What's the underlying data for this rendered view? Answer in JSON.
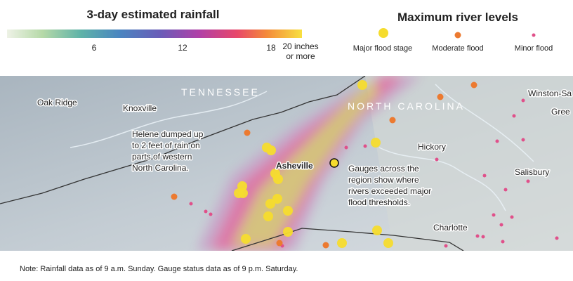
{
  "legend": {
    "rainfall": {
      "title": "3-day estimated rainfall",
      "ticks": [
        6,
        12,
        18
      ],
      "end_label": [
        "20 inches",
        "or more"
      ]
    },
    "river": {
      "title": "Maximum river levels",
      "items": [
        "Major flood stage",
        "Moderate flood",
        "Minor flood"
      ]
    }
  },
  "map": {
    "states": [
      "TENNESSEE",
      "NORTH CAROLINA"
    ],
    "cities": [
      "Oak Ridge",
      "Knoxville",
      "Asheville",
      "Hickory",
      "Winston-Sa",
      "Gree",
      "Salisbury",
      "Charlotte"
    ],
    "annotations": [
      [
        "Helene dumped up",
        "to 2 feet of rain on",
        "parts of western",
        "North Carolina."
      ],
      [
        "Gauges across the",
        "region show where",
        "rivers exceeded major",
        "flood thresholds."
      ]
    ]
  },
  "note": "Note: Rainfall data as of 9 a.m. Sunday. Gauge status data as of 9 p.m. Saturday."
}
